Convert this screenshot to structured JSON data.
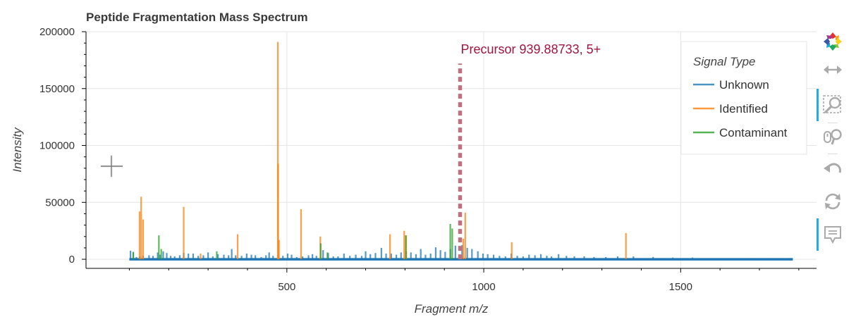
{
  "chart_data": {
    "type": "spectrum",
    "title": "Peptide Fragmentation Mass Spectrum",
    "xlabel": "Fragment m/z",
    "ylabel": "Intensity",
    "xlim": [
      -10,
      1845
    ],
    "ylim": [
      -8000,
      200000
    ],
    "x_ticks": [
      500,
      1000,
      1500
    ],
    "x_tick_labels": [
      "500",
      "1000",
      "1500"
    ],
    "y_ticks": [
      0,
      50000,
      100000,
      150000,
      200000
    ],
    "y_tick_labels": [
      "0",
      "50000",
      "100000",
      "150000",
      "200000"
    ],
    "grid": true,
    "legend": {
      "title": "Signal Type",
      "placement": "top-right",
      "entries": [
        {
          "label": "Unknown",
          "color": "#1f77b4"
        },
        {
          "label": "Identified",
          "color": "#ff7f0e"
        },
        {
          "label": "Contaminant",
          "color": "#2ca02c"
        }
      ]
    },
    "precursor": {
      "mz": 939.88733,
      "height": 172000,
      "color": "#c0707f",
      "label": "Precursor 939.88733, 5+"
    },
    "baseline_range": [
      100,
      1785
    ],
    "series": [
      {
        "name": "Unknown",
        "color": "#1f77b4",
        "x": [
          103,
          110,
          118,
          126,
          135,
          150,
          160,
          172,
          178,
          186,
          195,
          205,
          215,
          228,
          238,
          250,
          262,
          275,
          288,
          300,
          312,
          325,
          340,
          352,
          360,
          370,
          385,
          398,
          410,
          420,
          435,
          447,
          455,
          465,
          478,
          490,
          502,
          512,
          525,
          540,
          555,
          565,
          575,
          592,
          605,
          618,
          630,
          645,
          660,
          675,
          690,
          700,
          712,
          725,
          740,
          752,
          765,
          778,
          790,
          803,
          815,
          828,
          840,
          852,
          865,
          878,
          890,
          902,
          915,
          928,
          945,
          958,
          970,
          985,
          998,
          1010,
          1025,
          1040,
          1055,
          1070,
          1085,
          1100,
          1115,
          1130,
          1145,
          1160,
          1172,
          1190,
          1210,
          1230,
          1255,
          1280,
          1310,
          1340,
          1380,
          1430,
          1480,
          1530,
          1580,
          1630,
          1680,
          1730,
          1775
        ],
        "y": [
          7500,
          6500,
          2000,
          2500,
          3000,
          3500,
          3000,
          6000,
          4000,
          7000,
          5500,
          3000,
          2500,
          3500,
          5500,
          5000,
          5000,
          3000,
          3500,
          6000,
          2500,
          4500,
          4000,
          3500,
          9000,
          3500,
          3000,
          5000,
          4000,
          3500,
          2000,
          3500,
          6000,
          3000,
          4000,
          3000,
          5000,
          4000,
          2000,
          2500,
          3500,
          4500,
          3000,
          8000,
          5500,
          2500,
          2500,
          5000,
          3000,
          4000,
          3000,
          7000,
          4500,
          5500,
          10000,
          5000,
          5000,
          4000,
          6000,
          7000,
          6000,
          4500,
          9000,
          4000,
          5000,
          10500,
          8000,
          6500,
          9000,
          12000,
          12500,
          10000,
          9000,
          7000,
          5000,
          4500,
          4000,
          3000,
          2500,
          5000,
          3000,
          2500,
          4000,
          3500,
          4500,
          3000,
          2500,
          4500,
          3000,
          2500,
          2500,
          2000,
          2000,
          2500,
          2500,
          2000,
          1500,
          1500,
          1000,
          1000,
          1000,
          1000,
          1000
        ]
      },
      {
        "name": "Identified",
        "color": "#ff7f0e",
        "x": [
          126,
          130,
          135,
          238,
          281,
          375,
          477,
          478,
          480,
          536,
          585,
          762,
          798,
          803,
          948,
          953,
          1071,
          1361
        ],
        "y": [
          42000,
          55000,
          35000,
          46000,
          5000,
          22000,
          191000,
          84000,
          17000,
          44000,
          20000,
          22000,
          25000,
          21000,
          18000,
          41000,
          15000,
          23000
        ]
      },
      {
        "name": "Contaminant",
        "color": "#2ca02c",
        "x": [
          110,
          175,
          181,
          322,
          586,
          603,
          802,
          915,
          920
        ],
        "y": [
          6000,
          21000,
          9000,
          7000,
          14000,
          6000,
          21000,
          31000,
          27000
        ]
      }
    ]
  },
  "toolbar": {
    "logo": "bokeh-logo-icon",
    "tools": [
      "pan-icon",
      "box-zoom-icon",
      "wheel-zoom-icon",
      "reset-undo-icon",
      "reset-icon",
      "hover-icon"
    ]
  }
}
